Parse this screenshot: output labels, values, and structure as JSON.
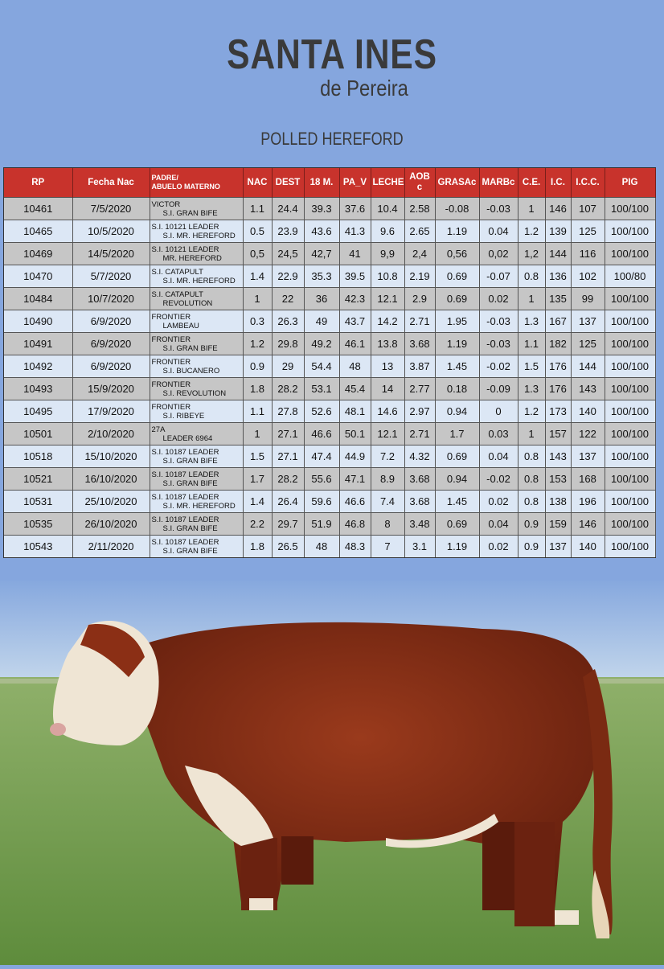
{
  "brand": {
    "title": "SANTA INES",
    "subtitle": "de Pereira",
    "breed": "POLLED HEREFORD"
  },
  "table": {
    "headers": {
      "rp": "RP",
      "fecha": "Fecha Nac",
      "padre_1": "PADRE/",
      "padre_2": "ABUELO MATERNO",
      "nac": "NAC",
      "dest": "DEST",
      "m18": "18 M.",
      "pav": "PA_V",
      "leche": "LECHE",
      "aob_1": "AOB",
      "aob_2": "c",
      "grasa": "GRASAc",
      "marb": "MARBc",
      "ce": "C.E.",
      "ic": "I.C.",
      "icc": "I.C.C.",
      "pig": "PIG"
    },
    "rows": [
      {
        "rp": "10461",
        "fecha": "7/5/2020",
        "padre": "VICTOR",
        "abuelo": "S.I. GRAN BIFE",
        "nac": "1.1",
        "dest": "24.4",
        "m18": "39.3",
        "pav": "37.6",
        "leche": "10.4",
        "aob": "2.58",
        "grasa": "-0.08",
        "marb": "-0.03",
        "ce": "1",
        "ic": "146",
        "icc": "107",
        "pig": "100/100"
      },
      {
        "rp": "10465",
        "fecha": "10/5/2020",
        "padre": "S.I. 10121 LEADER",
        "abuelo": "S.I. MR. HEREFORD",
        "nac": "0.5",
        "dest": "23.9",
        "m18": "43.6",
        "pav": "41.3",
        "leche": "9.6",
        "aob": "2.65",
        "grasa": "1.19",
        "marb": "0.04",
        "ce": "1.2",
        "ic": "139",
        "icc": "125",
        "pig": "100/100"
      },
      {
        "rp": "10469",
        "fecha": "14/5/2020",
        "padre": "S.I. 10121 LEADER",
        "abuelo": "MR. HEREFORD",
        "nac": "0,5",
        "dest": "24,5",
        "m18": "42,7",
        "pav": "41",
        "leche": "9,9",
        "aob": "2,4",
        "grasa": "0,56",
        "marb": "0,02",
        "ce": "1,2",
        "ic": "144",
        "icc": "116",
        "pig": "100/100"
      },
      {
        "rp": "10470",
        "fecha": "5/7/2020",
        "padre": "S.I. CATAPULT",
        "abuelo": "S.I. MR. HEREFORD",
        "nac": "1.4",
        "dest": "22.9",
        "m18": "35.3",
        "pav": "39.5",
        "leche": "10.8",
        "aob": "2.19",
        "grasa": "0.69",
        "marb": "-0.07",
        "ce": "0.8",
        "ic": "136",
        "icc": "102",
        "pig": "100/80"
      },
      {
        "rp": "10484",
        "fecha": "10/7/2020",
        "padre": "S.I. CATAPULT",
        "abuelo": "REVOLUTION",
        "nac": "1",
        "dest": "22",
        "m18": "36",
        "pav": "42.3",
        "leche": "12.1",
        "aob": "2.9",
        "grasa": "0.69",
        "marb": "0.02",
        "ce": "1",
        "ic": "135",
        "icc": "99",
        "pig": "100/100"
      },
      {
        "rp": "10490",
        "fecha": "6/9/2020",
        "padre": "FRONTIER",
        "abuelo": "LAMBEAU",
        "nac": "0.3",
        "dest": "26.3",
        "m18": "49",
        "pav": "43.7",
        "leche": "14.2",
        "aob": "2.71",
        "grasa": "1.95",
        "marb": "-0.03",
        "ce": "1.3",
        "ic": "167",
        "icc": "137",
        "pig": "100/100"
      },
      {
        "rp": "10491",
        "fecha": "6/9/2020",
        "padre": "FRONTIER",
        "abuelo": "S.I. GRAN BIFE",
        "nac": "1.2",
        "dest": "29.8",
        "m18": "49.2",
        "pav": "46.1",
        "leche": "13.8",
        "aob": "3.68",
        "grasa": "1.19",
        "marb": "-0.03",
        "ce": "1.1",
        "ic": "182",
        "icc": "125",
        "pig": "100/100"
      },
      {
        "rp": "10492",
        "fecha": "6/9/2020",
        "padre": "FRONTIER",
        "abuelo": "S.I. BUCANERO",
        "nac": "0.9",
        "dest": "29",
        "m18": "54.4",
        "pav": "48",
        "leche": "13",
        "aob": "3.87",
        "grasa": "1.45",
        "marb": "-0.02",
        "ce": "1.5",
        "ic": "176",
        "icc": "144",
        "pig": "100/100"
      },
      {
        "rp": "10493",
        "fecha": "15/9/2020",
        "padre": "FRONTIER",
        "abuelo": "S.I. REVOLUTION",
        "nac": "1.8",
        "dest": "28.2",
        "m18": "53.1",
        "pav": "45.4",
        "leche": "14",
        "aob": "2.77",
        "grasa": "0.18",
        "marb": "-0.09",
        "ce": "1.3",
        "ic": "176",
        "icc": "143",
        "pig": "100/100"
      },
      {
        "rp": "10495",
        "fecha": "17/9/2020",
        "padre": "FRONTIER",
        "abuelo": "S.I. RIBEYE",
        "nac": "1.1",
        "dest": "27.8",
        "m18": "52.6",
        "pav": "48.1",
        "leche": "14.6",
        "aob": "2.97",
        "grasa": "0.94",
        "marb": "0",
        "ce": "1.2",
        "ic": "173",
        "icc": "140",
        "pig": "100/100"
      },
      {
        "rp": "10501",
        "fecha": "2/10/2020",
        "padre": "27A",
        "abuelo": "LEADER 6964",
        "nac": "1",
        "dest": "27.1",
        "m18": "46.6",
        "pav": "50.1",
        "leche": "12.1",
        "aob": "2.71",
        "grasa": "1.7",
        "marb": "0.03",
        "ce": "1",
        "ic": "157",
        "icc": "122",
        "pig": "100/100"
      },
      {
        "rp": "10518",
        "fecha": "15/10/2020",
        "padre": "S.I. 10187 LEADER",
        "abuelo": "S.I. GRAN BIFE",
        "nac": "1.5",
        "dest": "27.1",
        "m18": "47.4",
        "pav": "44.9",
        "leche": "7.2",
        "aob": "4.32",
        "grasa": "0.69",
        "marb": "0.04",
        "ce": "0.8",
        "ic": "143",
        "icc": "137",
        "pig": "100/100"
      },
      {
        "rp": "10521",
        "fecha": "16/10/2020",
        "padre": "S.I. 10187 LEADER",
        "abuelo": "S.I. GRAN BIFE",
        "nac": "1.7",
        "dest": "28.2",
        "m18": "55.6",
        "pav": "47.1",
        "leche": "8.9",
        "aob": "3.68",
        "grasa": "0.94",
        "marb": "-0.02",
        "ce": "0.8",
        "ic": "153",
        "icc": "168",
        "pig": "100/100"
      },
      {
        "rp": "10531",
        "fecha": "25/10/2020",
        "padre": "S.I. 10187 LEADER",
        "abuelo": "S.I. MR. HEREFORD",
        "nac": "1.4",
        "dest": "26.4",
        "m18": "59.6",
        "pav": "46.6",
        "leche": "7.4",
        "aob": "3.68",
        "grasa": "1.45",
        "marb": "0.02",
        "ce": "0.8",
        "ic": "138",
        "icc": "196",
        "pig": "100/100"
      },
      {
        "rp": "10535",
        "fecha": "26/10/2020",
        "padre": "S.I. 10187 LEADER",
        "abuelo": "S.I. GRAN BIFE",
        "nac": "2.2",
        "dest": "29.7",
        "m18": "51.9",
        "pav": "46.8",
        "leche": "8",
        "aob": "3.48",
        "grasa": "0.69",
        "marb": "0.04",
        "ce": "0.9",
        "ic": "159",
        "icc": "146",
        "pig": "100/100"
      },
      {
        "rp": "10543",
        "fecha": "2/11/2020",
        "padre": "S.I. 10187 LEADER",
        "abuelo": "S.I. GRAN BIFE",
        "nac": "1.8",
        "dest": "26.5",
        "m18": "48",
        "pav": "48.3",
        "leche": "7",
        "aob": "3.1",
        "grasa": "1.19",
        "marb": "0.02",
        "ce": "0.9",
        "ic": "137",
        "icc": "140",
        "pig": "100/100"
      }
    ]
  },
  "colors": {
    "background": "#85a6de",
    "header_red": "#c8332c",
    "row_gray": "#c6c6c6",
    "row_blue": "#dce7f5"
  }
}
